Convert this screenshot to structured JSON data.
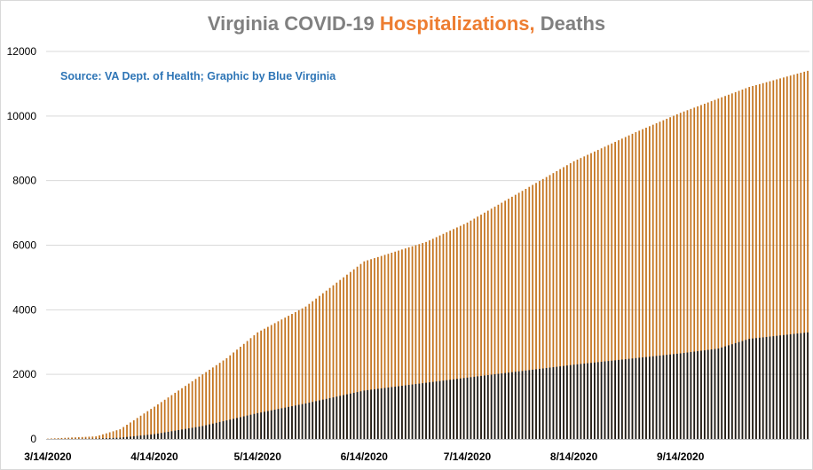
{
  "chart_data": {
    "type": "bar",
    "title": {
      "part1": "Virginia COVID-19 ",
      "part2": "Hospitalizations,",
      "part3": " Deaths"
    },
    "source": "Source: VA Dept. of Health; Graphic by Blue Virginia",
    "ylim": [
      0,
      12000
    ],
    "yticks": [
      "0",
      "2000",
      "4000",
      "6000",
      "8000",
      "10000",
      "12000"
    ],
    "x_tick_labels": [
      "3/14/2020",
      "4/14/2020",
      "5/14/2020",
      "6/14/2020",
      "7/14/2020",
      "8/14/2020",
      "9/14/2020"
    ],
    "date_range": [
      "2020-03-14",
      "2020-10-21"
    ],
    "anchors_hospitalizations": [
      [
        0,
        10
      ],
      [
        14,
        80
      ],
      [
        21,
        300
      ],
      [
        31,
        1000
      ],
      [
        45,
        2000
      ],
      [
        52,
        2500
      ],
      [
        61,
        3300
      ],
      [
        75,
        4100
      ],
      [
        92,
        5500
      ],
      [
        110,
        6100
      ],
      [
        122,
        6700
      ],
      [
        135,
        7500
      ],
      [
        153,
        8600
      ],
      [
        171,
        9500
      ],
      [
        184,
        10100
      ],
      [
        204,
        10900
      ],
      [
        221,
        11400
      ]
    ],
    "anchors_deaths": [
      [
        0,
        0
      ],
      [
        14,
        10
      ],
      [
        21,
        40
      ],
      [
        31,
        150
      ],
      [
        45,
        400
      ],
      [
        61,
        800
      ],
      [
        75,
        1100
      ],
      [
        92,
        1500
      ],
      [
        122,
        1900
      ],
      [
        153,
        2300
      ],
      [
        184,
        2650
      ],
      [
        195,
        2800
      ],
      [
        204,
        3100
      ],
      [
        221,
        3300
      ]
    ],
    "series": [
      {
        "name": "Hospitalizations",
        "color": "#c4741f"
      },
      {
        "name": "Deaths",
        "color": "#1a1a1a"
      }
    ],
    "grid": true,
    "legend": "none"
  }
}
